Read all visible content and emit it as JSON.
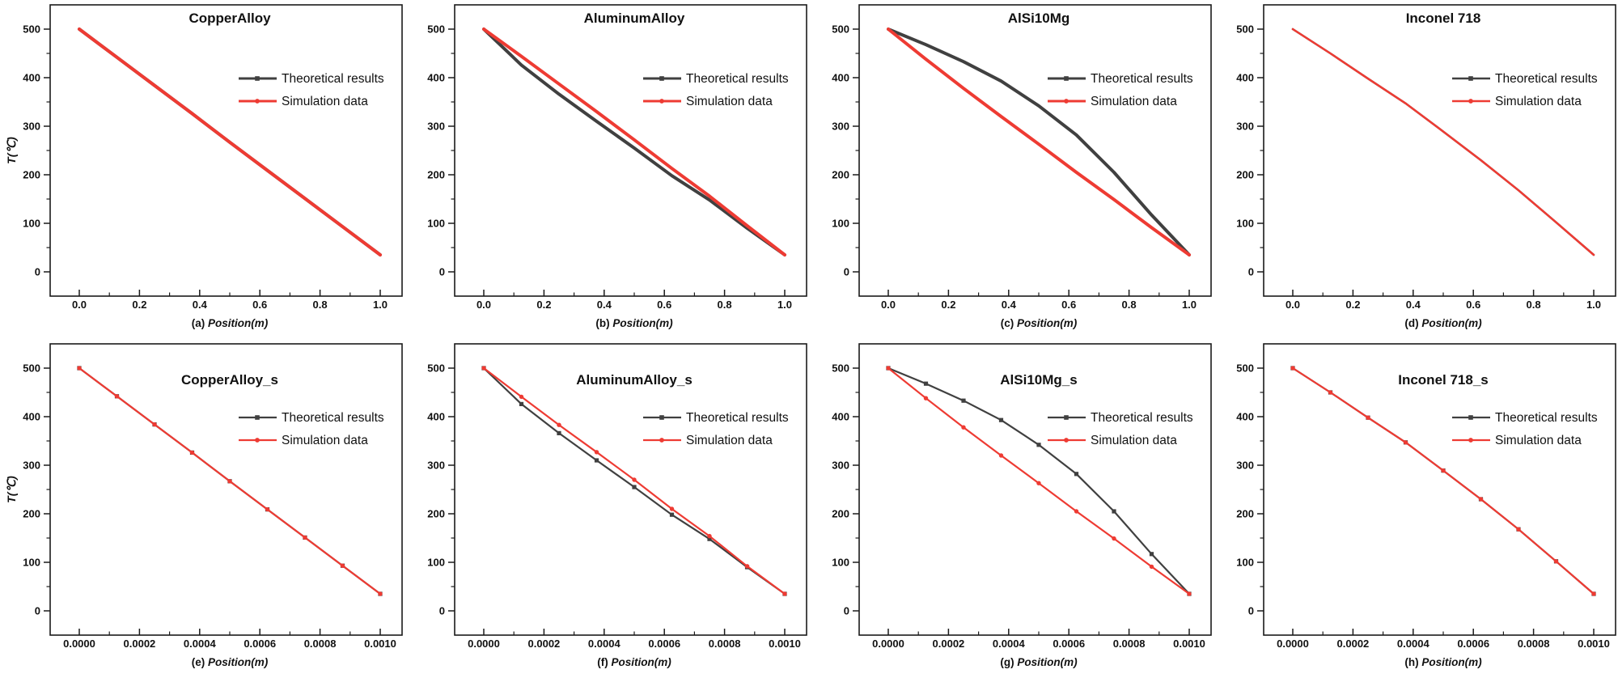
{
  "figure": {
    "background": "#ffffff",
    "frame_color": "#1a1a1a",
    "colors": {
      "theoretical": "#404040",
      "simulation": "#ee3b33"
    },
    "legend_labels": {
      "theoretical": "Theoretical results",
      "simulation": "Simulation data"
    },
    "ylabel": "T(℃)",
    "xlabel": "Position(m)"
  },
  "chart_data": [
    {
      "type": "line",
      "panel_label": "(a)",
      "title": "CopperAlloy",
      "xlabel": "Position(m)",
      "ylabel": "T(℃)",
      "show_ylabel": true,
      "xlim": [
        0,
        1.0
      ],
      "ylim": [
        0,
        500
      ],
      "xticks": [
        0,
        0.2,
        0.4,
        0.6,
        0.8,
        1.0
      ],
      "xtick_labels": [
        "0.0",
        "0.2",
        "0.4",
        "0.6",
        "0.8",
        "1.0"
      ],
      "yticks": [
        0,
        100,
        200,
        300,
        400,
        500
      ],
      "legend_position": "upper right",
      "grid": false,
      "show_markers": false,
      "x": [
        0,
        0.125,
        0.25,
        0.375,
        0.5,
        0.625,
        0.75,
        0.875,
        1.0
      ],
      "series": [
        {
          "name": "Theoretical results",
          "color": "#404040",
          "line_width": 4,
          "values": [
            500,
            442,
            384,
            326,
            267,
            209,
            151,
            93,
            35
          ]
        },
        {
          "name": "Simulation data",
          "color": "#ee3b33",
          "line_width": 4,
          "values": [
            500,
            442,
            384,
            326,
            267,
            209,
            151,
            93,
            35
          ]
        }
      ]
    },
    {
      "type": "line",
      "panel_label": "(b)",
      "title": "AluminumAlloy",
      "xlabel": "Position(m)",
      "ylabel": "T(℃)",
      "show_ylabel": false,
      "xlim": [
        0,
        1.0
      ],
      "ylim": [
        0,
        500
      ],
      "xticks": [
        0,
        0.2,
        0.4,
        0.6,
        0.8,
        1.0
      ],
      "xtick_labels": [
        "0.0",
        "0.2",
        "0.4",
        "0.6",
        "0.8",
        "1.0"
      ],
      "yticks": [
        0,
        100,
        200,
        300,
        400,
        500
      ],
      "legend_position": "upper right",
      "grid": false,
      "show_markers": false,
      "x": [
        0,
        0.125,
        0.25,
        0.375,
        0.5,
        0.625,
        0.75,
        0.875,
        1.0
      ],
      "series": [
        {
          "name": "Theoretical results",
          "color": "#404040",
          "line_width": 4,
          "values": [
            500,
            426,
            366,
            310,
            255,
            198,
            148,
            90,
            35
          ]
        },
        {
          "name": "Simulation data",
          "color": "#ee3b33",
          "line_width": 4,
          "values": [
            500,
            444,
            387,
            330,
            272,
            213,
            156,
            95,
            35
          ]
        }
      ]
    },
    {
      "type": "line",
      "panel_label": "(c)",
      "title": "AlSi10Mg",
      "xlabel": "Position(m)",
      "ylabel": "T(℃)",
      "show_ylabel": false,
      "xlim": [
        0,
        1.0
      ],
      "ylim": [
        0,
        500
      ],
      "xticks": [
        0,
        0.2,
        0.4,
        0.6,
        0.8,
        1.0
      ],
      "xtick_labels": [
        "0.0",
        "0.2",
        "0.4",
        "0.6",
        "0.8",
        "1.0"
      ],
      "yticks": [
        0,
        100,
        200,
        300,
        400,
        500
      ],
      "legend_position": "upper right",
      "grid": false,
      "show_markers": false,
      "x": [
        0,
        0.125,
        0.25,
        0.375,
        0.5,
        0.625,
        0.75,
        0.875,
        1.0
      ],
      "series": [
        {
          "name": "Theoretical results",
          "color": "#404040",
          "line_width": 4,
          "values": [
            500,
            468,
            433,
            393,
            342,
            282,
            205,
            117,
            35
          ]
        },
        {
          "name": "Simulation data",
          "color": "#ee3b33",
          "line_width": 4,
          "values": [
            500,
            438,
            378,
            320,
            263,
            205,
            149,
            91,
            35
          ]
        }
      ]
    },
    {
      "type": "line",
      "panel_label": "(d)",
      "title": "Inconel 718",
      "xlabel": "Position(m)",
      "ylabel": "T(℃)",
      "show_ylabel": false,
      "xlim": [
        0,
        1.0
      ],
      "ylim": [
        0,
        500
      ],
      "xticks": [
        0,
        0.2,
        0.4,
        0.6,
        0.8,
        1.0
      ],
      "xtick_labels": [
        "0.0",
        "0.2",
        "0.4",
        "0.6",
        "0.8",
        "1.0"
      ],
      "yticks": [
        0,
        100,
        200,
        300,
        400,
        500
      ],
      "legend_position": "upper right",
      "grid": false,
      "show_markers": false,
      "x": [
        0,
        0.125,
        0.25,
        0.375,
        0.5,
        0.625,
        0.75,
        0.875,
        1.0
      ],
      "series": [
        {
          "name": "Theoretical results",
          "color": "#404040",
          "line_width": 2.5,
          "values": [
            500,
            450,
            398,
            347,
            289,
            230,
            168,
            102,
            35
          ]
        },
        {
          "name": "Simulation data",
          "color": "#ee3b33",
          "line_width": 2.5,
          "values": [
            500,
            450,
            398,
            347,
            289,
            230,
            168,
            102,
            35
          ]
        }
      ]
    },
    {
      "type": "line",
      "panel_label": "(e)",
      "title": "CopperAlloy_s",
      "xlabel": "Position(m)",
      "ylabel": "T(℃)",
      "show_ylabel": true,
      "xlim": [
        0,
        0.001
      ],
      "ylim": [
        0,
        500
      ],
      "xticks": [
        0,
        0.0002,
        0.0004,
        0.0006,
        0.0008,
        0.001
      ],
      "xtick_labels": [
        "0.0000",
        "0.0002",
        "0.0004",
        "0.0006",
        "0.0008",
        "0.0010"
      ],
      "yticks": [
        0,
        100,
        200,
        300,
        400,
        500
      ],
      "legend_position": "upper right",
      "grid": false,
      "show_markers": true,
      "x": [
        0,
        0.000125,
        0.00025,
        0.000375,
        0.0005,
        0.000625,
        0.00075,
        0.000875,
        0.001
      ],
      "series": [
        {
          "name": "Theoretical results",
          "color": "#404040",
          "line_width": 2.2,
          "values": [
            500,
            442,
            384,
            326,
            267,
            209,
            151,
            93,
            35
          ]
        },
        {
          "name": "Simulation data",
          "color": "#ee3b33",
          "line_width": 2.2,
          "values": [
            500,
            442,
            384,
            326,
            267,
            209,
            151,
            93,
            35
          ]
        }
      ]
    },
    {
      "type": "line",
      "panel_label": "(f)",
      "title": "AluminumAlloy_s",
      "xlabel": "Position(m)",
      "ylabel": "T(℃)",
      "show_ylabel": false,
      "xlim": [
        0,
        0.001
      ],
      "ylim": [
        0,
        500
      ],
      "xticks": [
        0,
        0.0002,
        0.0004,
        0.0006,
        0.0008,
        0.001
      ],
      "xtick_labels": [
        "0.0000",
        "0.0002",
        "0.0004",
        "0.0006",
        "0.0008",
        "0.0010"
      ],
      "yticks": [
        0,
        100,
        200,
        300,
        400,
        500
      ],
      "legend_position": "upper right",
      "grid": false,
      "show_markers": true,
      "x": [
        0,
        0.000125,
        0.00025,
        0.000375,
        0.0005,
        0.000625,
        0.00075,
        0.000875,
        0.001
      ],
      "series": [
        {
          "name": "Theoretical results",
          "color": "#404040",
          "line_width": 2.2,
          "values": [
            500,
            426,
            366,
            310,
            255,
            198,
            148,
            90,
            35
          ]
        },
        {
          "name": "Simulation data",
          "color": "#ee3b33",
          "line_width": 2.2,
          "values": [
            500,
            441,
            383,
            327,
            270,
            210,
            154,
            92,
            35
          ]
        }
      ]
    },
    {
      "type": "line",
      "panel_label": "(g)",
      "title": "AlSi10Mg_s",
      "xlabel": "Position(m)",
      "ylabel": "T(℃)",
      "show_ylabel": false,
      "xlim": [
        0,
        0.001
      ],
      "ylim": [
        0,
        500
      ],
      "xticks": [
        0,
        0.0002,
        0.0004,
        0.0006,
        0.0008,
        0.001
      ],
      "xtick_labels": [
        "0.0000",
        "0.0002",
        "0.0004",
        "0.0006",
        "0.0008",
        "0.0010"
      ],
      "yticks": [
        0,
        100,
        200,
        300,
        400,
        500
      ],
      "legend_position": "upper right",
      "grid": false,
      "show_markers": true,
      "x": [
        0,
        0.000125,
        0.00025,
        0.000375,
        0.0005,
        0.000625,
        0.00075,
        0.000875,
        0.001
      ],
      "series": [
        {
          "name": "Theoretical results",
          "color": "#404040",
          "line_width": 2.2,
          "values": [
            500,
            468,
            433,
            393,
            342,
            282,
            205,
            117,
            35
          ]
        },
        {
          "name": "Simulation data",
          "color": "#ee3b33",
          "line_width": 2.2,
          "values": [
            500,
            438,
            378,
            320,
            263,
            205,
            149,
            91,
            35
          ]
        }
      ]
    },
    {
      "type": "line",
      "panel_label": "(h)",
      "title": "Inconel 718_s",
      "xlabel": "Position(m)",
      "ylabel": "T(℃)",
      "show_ylabel": false,
      "xlim": [
        0,
        0.001
      ],
      "ylim": [
        0,
        500
      ],
      "xticks": [
        0,
        0.0002,
        0.0004,
        0.0006,
        0.0008,
        0.001
      ],
      "xtick_labels": [
        "0.0000",
        "0.0002",
        "0.0004",
        "0.0006",
        "0.0008",
        "0.0010"
      ],
      "yticks": [
        0,
        100,
        200,
        300,
        400,
        500
      ],
      "legend_position": "upper right",
      "grid": false,
      "show_markers": true,
      "x": [
        0,
        0.000125,
        0.00025,
        0.000375,
        0.0005,
        0.000625,
        0.00075,
        0.000875,
        0.001
      ],
      "series": [
        {
          "name": "Theoretical results",
          "color": "#404040",
          "line_width": 2.2,
          "values": [
            500,
            450,
            398,
            347,
            289,
            230,
            168,
            102,
            35
          ]
        },
        {
          "name": "Simulation data",
          "color": "#ee3b33",
          "line_width": 2.2,
          "values": [
            500,
            450,
            398,
            347,
            289,
            230,
            168,
            102,
            35
          ]
        }
      ]
    }
  ]
}
